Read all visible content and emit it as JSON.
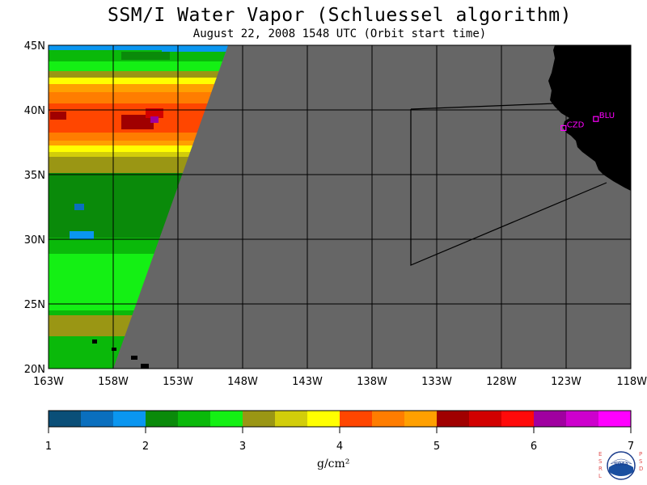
{
  "header": {
    "title": "SSM/I Water Vapor (Schluessel algorithm)",
    "subtitle": "August 22, 2008  1548 UTC  (Orbit start time)"
  },
  "map": {
    "lat_labels": [
      "45N",
      "40N",
      "35N",
      "30N",
      "25N",
      "20N"
    ],
    "lon_labels": [
      "163W",
      "158W",
      "153W",
      "148W",
      "143W",
      "138W",
      "133W",
      "128W",
      "123W",
      "118W"
    ],
    "stations": [
      {
        "id": "CZD",
        "lon": -123.2,
        "lat": 38.6
      },
      {
        "id": "BLU",
        "lon": -120.7,
        "lat": 39.3
      }
    ],
    "colors": {
      "nodata": "#666666",
      "land": "#000000",
      "station": "#ff00ff"
    }
  },
  "colorbar": {
    "colors": [
      "#0a4f78",
      "#0a6fbe",
      "#0a96f0",
      "#0a8a0a",
      "#0ab90a",
      "#14f014",
      "#9a9614",
      "#d2cd0a",
      "#ffff00",
      "#ff4600",
      "#ff7d00",
      "#ffa000",
      "#a00000",
      "#d20000",
      "#ff0a0a",
      "#a000a0",
      "#cd00cd",
      "#ff00ff"
    ],
    "tick_labels": [
      "1",
      "2",
      "3",
      "4",
      "5",
      "6",
      "7"
    ],
    "unit": "g/cm²"
  },
  "logo": {
    "left_letters": "ESRL",
    "right_letters": "PSD",
    "seal_text": "NOAA"
  }
}
